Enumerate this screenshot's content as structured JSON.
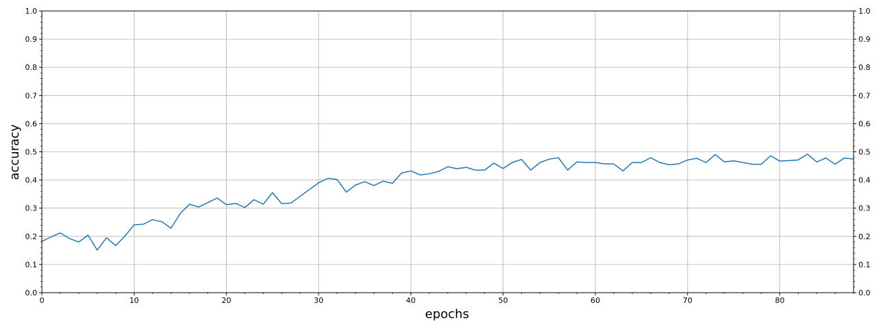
{
  "chart_data": {
    "type": "line",
    "title": "",
    "xlabel": "epochs",
    "ylabel": "accuracy",
    "xlim": [
      0,
      88
    ],
    "ylim": [
      0,
      1.0
    ],
    "x_ticks": [
      0,
      10,
      20,
      30,
      40,
      50,
      60,
      70,
      80
    ],
    "y_ticks": [
      0.0,
      0.1,
      0.2,
      0.3,
      0.4,
      0.5,
      0.6,
      0.7,
      0.8,
      0.9,
      1.0
    ],
    "y_tick_labels": [
      "0.0",
      "0.1",
      "0.2",
      "0.3",
      "0.4",
      "0.5",
      "0.6",
      "0.7",
      "0.8",
      "0.9",
      "1.0"
    ],
    "grid": true,
    "right_axis_mirrored": true,
    "colors": {
      "series": "#1f77b4",
      "grid": "#b0b0b0"
    },
    "series": [
      {
        "x": [
          0,
          1,
          2,
          3,
          4,
          5,
          6,
          7,
          8,
          9,
          10,
          11,
          12,
          13,
          14,
          15,
          16,
          17,
          18,
          19,
          20,
          21,
          22,
          23,
          24,
          25,
          26,
          27,
          28,
          29,
          30,
          31,
          32,
          33,
          34,
          35,
          36,
          37,
          38,
          39,
          40,
          41,
          42,
          43,
          44,
          45,
          46,
          47,
          48,
          49,
          50,
          51,
          52,
          53,
          54,
          55,
          56,
          57,
          58,
          59,
          60,
          61,
          62,
          63,
          64,
          65,
          66,
          67,
          68,
          69,
          70,
          71,
          72,
          73,
          74,
          75,
          76,
          77,
          78,
          79,
          80,
          81,
          82,
          83,
          84,
          85,
          86,
          87,
          88
        ],
        "values": [
          0.182,
          0.198,
          0.212,
          0.192,
          0.18,
          0.204,
          0.151,
          0.195,
          0.167,
          0.201,
          0.241,
          0.243,
          0.259,
          0.252,
          0.229,
          0.281,
          0.314,
          0.304,
          0.32,
          0.336,
          0.312,
          0.317,
          0.302,
          0.33,
          0.314,
          0.355,
          0.316,
          0.318,
          0.342,
          0.366,
          0.39,
          0.406,
          0.402,
          0.357,
          0.382,
          0.394,
          0.38,
          0.396,
          0.388,
          0.425,
          0.432,
          0.418,
          0.422,
          0.43,
          0.447,
          0.44,
          0.445,
          0.435,
          0.435,
          0.46,
          0.441,
          0.462,
          0.473,
          0.435,
          0.462,
          0.474,
          0.479,
          0.435,
          0.464,
          0.462,
          0.462,
          0.457,
          0.457,
          0.432,
          0.462,
          0.462,
          0.479,
          0.462,
          0.454,
          0.457,
          0.471,
          0.477,
          0.462,
          0.49,
          0.464,
          0.468,
          0.462,
          0.456,
          0.456,
          0.486,
          0.467,
          0.469,
          0.471,
          0.492,
          0.464,
          0.478,
          0.456,
          0.478,
          0.474
        ]
      }
    ]
  }
}
